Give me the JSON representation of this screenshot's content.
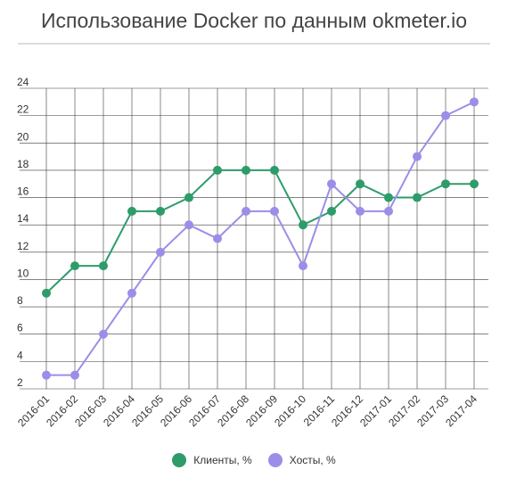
{
  "chart_data": {
    "type": "line",
    "title": "Использование Docker по данным okmeter.io",
    "categories": [
      "2016-01",
      "2016-02",
      "2016-03",
      "2016-04",
      "2016-05",
      "2016-06",
      "2016-07",
      "2016-08",
      "2016-09",
      "2016-10",
      "2016-11",
      "2016-12",
      "2017-01",
      "2017-02",
      "2017-03",
      "2017-04"
    ],
    "series": [
      {
        "name": "Клиенты, %",
        "color": "#2e9c6a",
        "values": [
          9,
          11,
          11,
          15,
          15,
          16,
          18,
          18,
          18,
          14,
          15,
          17,
          16,
          16,
          17,
          17
        ]
      },
      {
        "name": "Хосты, %",
        "color": "#9b8ee8",
        "values": [
          3,
          3,
          6,
          9,
          12,
          14,
          13,
          15,
          15,
          11,
          17,
          15,
          15,
          19,
          22,
          23
        ]
      }
    ],
    "yticks": [
      2,
      4,
      6,
      8,
      10,
      12,
      14,
      16,
      18,
      20,
      22,
      24
    ],
    "ylim": [
      2,
      24
    ],
    "grid": true,
    "legend": "bottom"
  }
}
